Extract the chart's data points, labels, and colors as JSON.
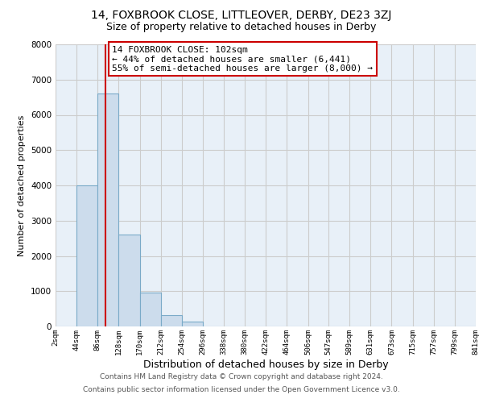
{
  "title": "14, FOXBROOK CLOSE, LITTLEOVER, DERBY, DE23 3ZJ",
  "subtitle": "Size of property relative to detached houses in Derby",
  "xlabel": "Distribution of detached houses by size in Derby",
  "ylabel": "Number of detached properties",
  "bar_edges": [
    2,
    44,
    86,
    128,
    170,
    212,
    254,
    296,
    338,
    380,
    422,
    464,
    506,
    547,
    589,
    631,
    673,
    715,
    757,
    799,
    841
  ],
  "bar_heights": [
    0,
    4000,
    6600,
    2600,
    970,
    320,
    130,
    0,
    0,
    0,
    0,
    0,
    0,
    0,
    0,
    0,
    0,
    0,
    0,
    0
  ],
  "bar_color": "#ccdcec",
  "bar_edgecolor": "#7aaac8",
  "vline_x": 102,
  "vline_color": "#cc0000",
  "annotation_line1": "14 FOXBROOK CLOSE: 102sqm",
  "annotation_line2": "← 44% of detached houses are smaller (6,441)",
  "annotation_line3": "55% of semi-detached houses are larger (8,000) →",
  "annotation_box_facecolor": "white",
  "annotation_box_edgecolor": "#cc0000",
  "ylim": [
    0,
    8000
  ],
  "xlim": [
    2,
    841
  ],
  "tick_labels": [
    "2sqm",
    "44sqm",
    "86sqm",
    "128sqm",
    "170sqm",
    "212sqm",
    "254sqm",
    "296sqm",
    "338sqm",
    "380sqm",
    "422sqm",
    "464sqm",
    "506sqm",
    "547sqm",
    "589sqm",
    "631sqm",
    "673sqm",
    "715sqm",
    "757sqm",
    "799sqm",
    "841sqm"
  ],
  "grid_color": "#cccccc",
  "background_color": "#e8f0f8",
  "footer1": "Contains HM Land Registry data © Crown copyright and database right 2024.",
  "footer2": "Contains public sector information licensed under the Open Government Licence v3.0.",
  "title_fontsize": 10,
  "subtitle_fontsize": 9,
  "xlabel_fontsize": 9,
  "ylabel_fontsize": 8,
  "tick_fontsize": 6.5,
  "footer_fontsize": 6.5,
  "annot_fontsize": 8
}
